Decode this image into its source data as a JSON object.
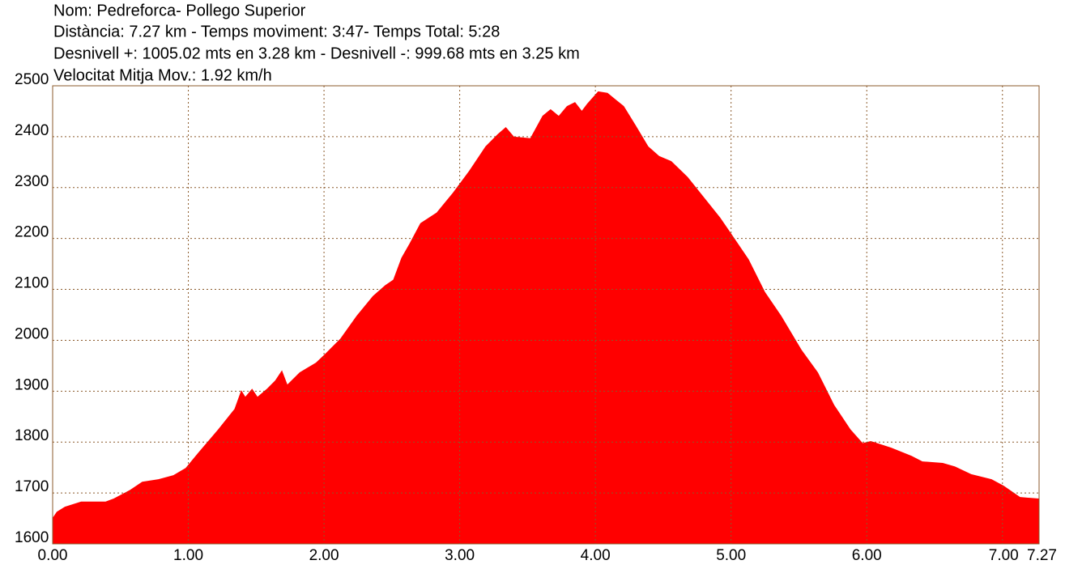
{
  "chart_data": {
    "type": "area",
    "title": "Nom: Pedreforca- Pollego Superior",
    "subtitle": [
      "Distància: 7.27 km - Temps moviment: 3:47- Temps Total: 5:28",
      "Desnivell +: 1005.02 mts en 3.28 km - Desnivell -: 999.68 mts en 3.25 km",
      "Velocitat Mitja Mov.: 1.92 km/h"
    ],
    "x": [
      0,
      0.03,
      0.09,
      0.21,
      0.39,
      0.45,
      0.57,
      0.66,
      0.78,
      0.89,
      0.98,
      1.07,
      1.22,
      1.34,
      1.39,
      1.42,
      1.47,
      1.51,
      1.58,
      1.64,
      1.69,
      1.73,
      1.82,
      1.94,
      2.0,
      2.12,
      2.24,
      2.36,
      2.45,
      2.51,
      2.57,
      2.63,
      2.71,
      2.83,
      2.95,
      3.07,
      3.19,
      3.28,
      3.34,
      3.4,
      3.52,
      3.61,
      3.67,
      3.73,
      3.79,
      3.85,
      3.9,
      3.94,
      4.02,
      4.09,
      4.21,
      4.3,
      4.39,
      4.47,
      4.56,
      4.68,
      4.8,
      4.92,
      5.01,
      5.13,
      5.25,
      5.37,
      5.52,
      5.64,
      5.76,
      5.88,
      5.97,
      6.03,
      6.18,
      6.33,
      6.41,
      6.56,
      6.65,
      6.77,
      6.92,
      7.01,
      7.13,
      7.27
    ],
    "values": [
      1651,
      1663,
      1673,
      1683,
      1683,
      1689,
      1706,
      1722,
      1727,
      1735,
      1749,
      1778,
      1825,
      1865,
      1902,
      1889,
      1905,
      1889,
      1905,
      1921,
      1941,
      1913,
      1937,
      1956,
      1971,
      2003,
      2048,
      2087,
      2108,
      2119,
      2162,
      2190,
      2230,
      2251,
      2290,
      2333,
      2381,
      2405,
      2419,
      2400,
      2397,
      2441,
      2454,
      2441,
      2460,
      2468,
      2451,
      2465,
      2489,
      2486,
      2460,
      2421,
      2381,
      2362,
      2352,
      2321,
      2281,
      2241,
      2206,
      2159,
      2095,
      2048,
      1981,
      1937,
      1873,
      1825,
      1798,
      1802,
      1789,
      1773,
      1762,
      1759,
      1752,
      1737,
      1727,
      1714,
      1692,
      1689
    ],
    "color": "#ff0000",
    "xlim": [
      0,
      7.27
    ],
    "xticks": [
      {
        "value": 0,
        "label": "0.00"
      },
      {
        "value": 1,
        "label": "1.00"
      },
      {
        "value": 2,
        "label": "2.00"
      },
      {
        "value": 3,
        "label": "3.00"
      },
      {
        "value": 4,
        "label": "4.00"
      },
      {
        "value": 5,
        "label": "5.00"
      },
      {
        "value": 6,
        "label": "6.00"
      },
      {
        "value": 7,
        "label": "7.00"
      },
      7.27
    ],
    "ylim": [
      1600,
      2500
    ],
    "yticks": [
      1600,
      1700,
      1800,
      1900,
      2000,
      2100,
      2200,
      2300,
      2400,
      2500
    ],
    "grid": true
  }
}
